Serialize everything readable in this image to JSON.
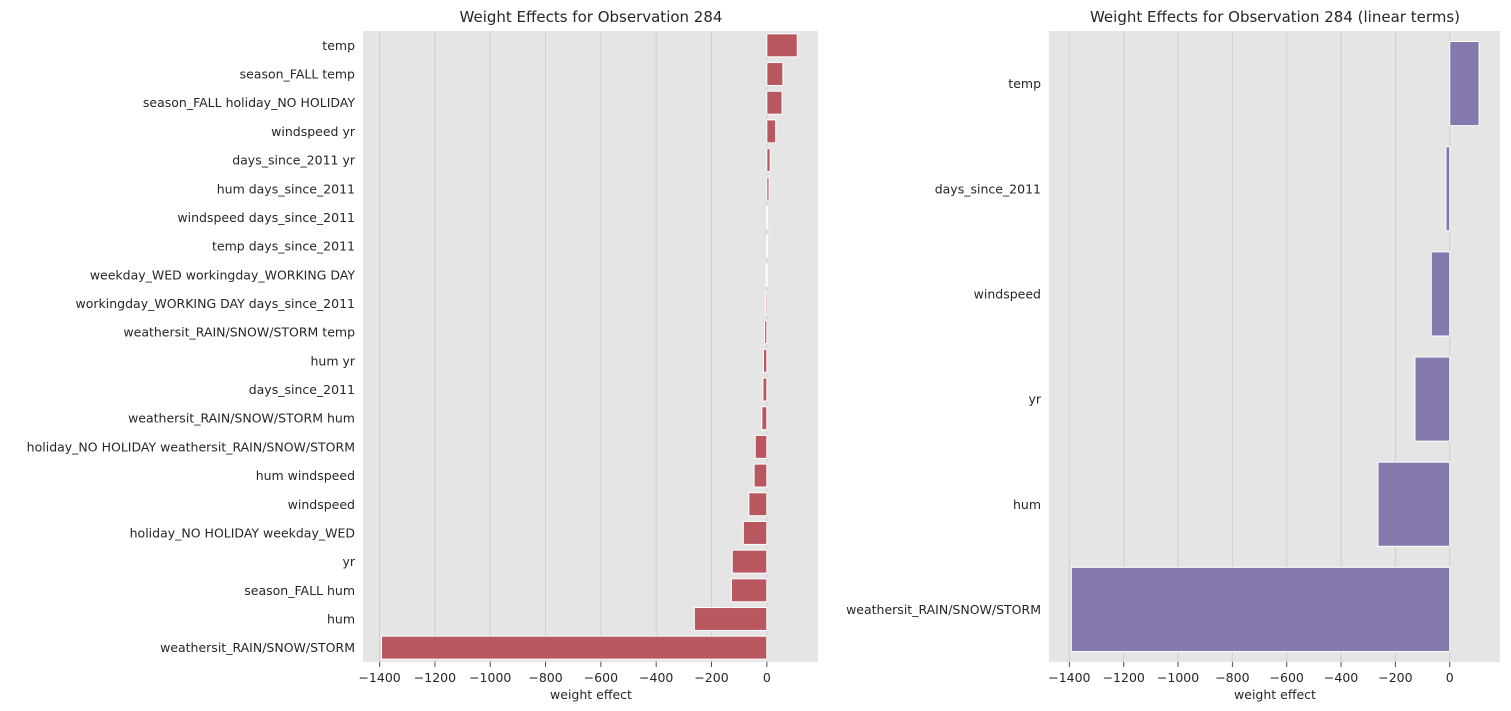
{
  "chart_data": [
    {
      "type": "bar",
      "orientation": "horizontal",
      "title": "Weight Effects for Observation 284",
      "xlabel": "weight effect",
      "ylabel": "",
      "xlim": [
        -1460,
        185
      ],
      "xticks": [
        -1400,
        -1200,
        -1000,
        -800,
        -600,
        -400,
        -200,
        0
      ],
      "xtick_labels": [
        "−1400",
        "−1200",
        "−1000",
        "−800",
        "−600",
        "−400",
        "−200",
        "0"
      ],
      "grid": "vertical",
      "bar_color": "#b85760",
      "categories": [
        "temp",
        "season_FALL temp",
        "season_FALL holiday_NO HOLIDAY",
        "windspeed yr",
        "days_since_2011 yr",
        "hum days_since_2011",
        "windspeed days_since_2011",
        "temp days_since_2011",
        "weekday_WED workingday_WORKING DAY",
        "workingday_WORKING DAY days_since_2011",
        "weathersit_RAIN/SNOW/STORM temp",
        "hum yr",
        "days_since_2011",
        "weathersit_RAIN/SNOW/STORM hum",
        "holiday_NO HOLIDAY weathersit_RAIN/SNOW/STORM",
        "hum windspeed",
        "windspeed",
        "holiday_NO HOLIDAY weekday_WED",
        "yr",
        "season_FALL hum",
        "hum",
        "weathersit_RAIN/SNOW/STORM"
      ],
      "values": [
        110,
        58,
        55,
        32,
        12,
        8,
        3,
        2,
        -2,
        -5,
        -8,
        -12,
        -14,
        -18,
        -42,
        -46,
        -65,
        -85,
        -125,
        -128,
        -262,
        -1393
      ]
    },
    {
      "type": "bar",
      "orientation": "horizontal",
      "title": "Weight Effects for Observation 284 (linear terms)",
      "xlabel": "weight effect",
      "ylabel": "",
      "xlim": [
        -1475,
        185
      ],
      "xticks": [
        -1400,
        -1200,
        -1000,
        -800,
        -600,
        -400,
        -200,
        0
      ],
      "xtick_labels": [
        "−1400",
        "−1200",
        "−1000",
        "−800",
        "−600",
        "−400",
        "−200",
        "0"
      ],
      "grid": "vertical",
      "bar_color": "#8679ae",
      "categories": [
        "temp",
        "days_since_2011",
        "windspeed",
        "yr",
        "hum",
        "weathersit_RAIN/SNOW/STORM"
      ],
      "values": [
        108,
        -14,
        -68,
        -128,
        -264,
        -1393
      ]
    }
  ]
}
